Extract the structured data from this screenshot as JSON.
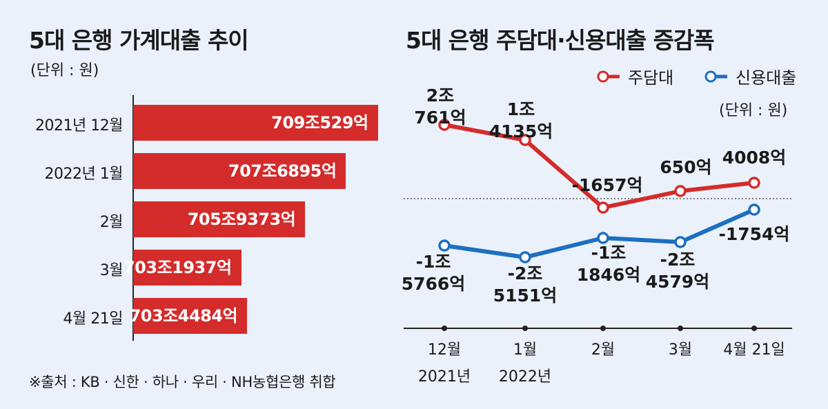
{
  "left_chart": {
    "title": "5대 은행 가계대출 추이",
    "unit": "(단위 : 원)"
  },
  "right_chart": {
    "title": "5대 은행 주담대·신용대출 증감폭",
    "unit": "(단위 : 원)"
  },
  "source": "※출처 : KB · 신한 · 하나 · 우리 · NH농협은행 취합",
  "colors": {
    "red": "#d42b2b",
    "blue": "#1d6fc0",
    "background": "#eaf1fb"
  },
  "chart_data": [
    {
      "type": "bar",
      "orientation": "horizontal",
      "title": "5대 은행 가계대출 추이",
      "categories": [
        "2021년 12월",
        "2022년 1월",
        "2월",
        "3월",
        "4월 21일"
      ],
      "values": [
        7090529,
        7076895,
        7059373,
        7031937,
        7034484
      ],
      "value_unit": "억 원",
      "labels": [
        "709조529억",
        "707조6895억",
        "705조9373억",
        "703조1937억",
        "703조4484억"
      ]
    },
    {
      "type": "line",
      "title": "5대 은행 주담대·신용대출 증감폭",
      "categories": [
        {
          "line1": "12월",
          "line2": "2021년"
        },
        {
          "line1": "1월",
          "line2": "2022년"
        },
        {
          "line1": "2월",
          "line2": ""
        },
        {
          "line1": "3월",
          "line2": ""
        },
        {
          "line1": "4월 21일",
          "line2": ""
        }
      ],
      "value_unit": "억 원",
      "series": [
        {
          "name": "주담대",
          "color": "#d42b2b",
          "values": [
            20761,
            14135,
            -1657,
            650,
            4008
          ],
          "labels": [
            [
              "2조",
              "761억"
            ],
            [
              "1조",
              "4135억"
            ],
            [
              "-1657억"
            ],
            [
              "650억"
            ],
            [
              "4008억"
            ]
          ]
        },
        {
          "name": "신용대출",
          "color": "#1d6fc0",
          "values": [
            -15766,
            -25151,
            -11846,
            -24579,
            -1754
          ],
          "labels": [
            [
              "-1조",
              "5766억"
            ],
            [
              "-2조",
              "5151억"
            ],
            [
              "-1조",
              "1846억"
            ],
            [
              "-2조",
              "4579억"
            ],
            [
              "-1754억"
            ]
          ]
        }
      ]
    }
  ]
}
